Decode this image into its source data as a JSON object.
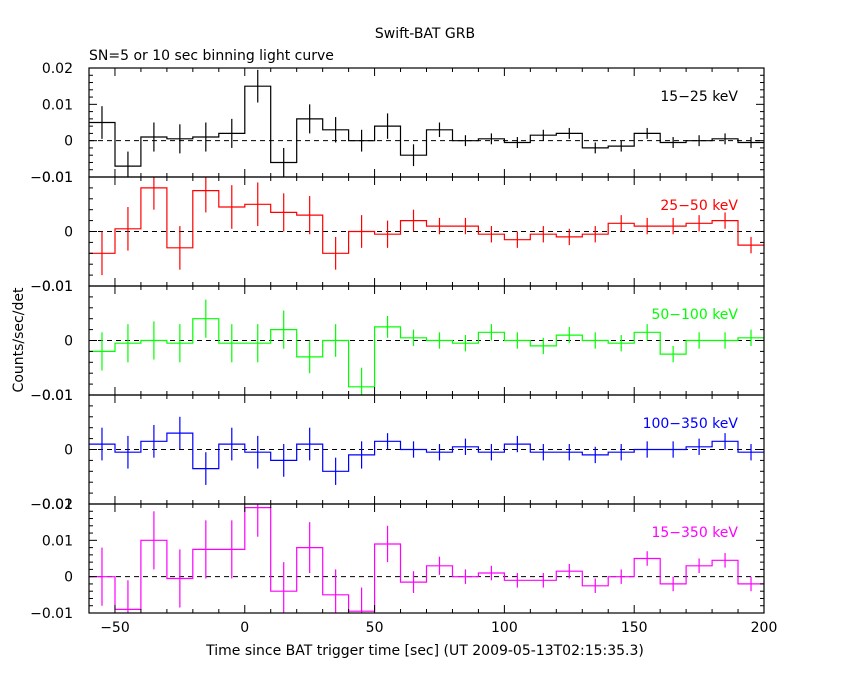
{
  "title": "Swift-BAT GRB",
  "subtitle": "SN=5 or 10 sec binning light curve",
  "xlabel": "Time since BAT trigger time [sec] (UT 2009-05-13T02:15:35.3)",
  "ylabel": "Counts/sec/det",
  "chart_data": {
    "type": "line",
    "title": "Swift-BAT GRB",
    "subtitle": "SN=5 or 10 sec binning light curve",
    "xlabel": "Time since BAT trigger time [sec] (UT 2009-05-13T02:15:35.3)",
    "ylabel": "Counts/sec/det",
    "xlim": [
      -60,
      200
    ],
    "x_ticks": [
      -50,
      0,
      50,
      100,
      150,
      200
    ],
    "x_tick_labels": [
      "−50",
      "0",
      "50",
      "100",
      "150",
      "200"
    ],
    "grid": false,
    "bin_width": 10,
    "bin_centers": [
      -55,
      -45,
      -35,
      -25,
      -15,
      -5,
      5,
      15,
      25,
      35,
      45,
      55,
      65,
      75,
      85,
      95,
      105,
      115,
      125,
      135,
      145,
      155,
      165,
      175,
      185,
      195
    ],
    "zero_line": "dashed",
    "panels": [
      {
        "label": "15−25 keV",
        "color": "#000000",
        "ylim": [
          -0.01,
          0.02
        ],
        "y_ticks": [
          -0.01,
          0,
          0.01,
          0.02
        ],
        "y_tick_labels": [
          "−0.01",
          "0",
          "0.01",
          "0.02"
        ],
        "values": [
          0.005,
          -0.007,
          0.001,
          0.0005,
          0.001,
          0.002,
          0.015,
          -0.006,
          0.006,
          0.003,
          0.0,
          0.004,
          -0.004,
          0.003,
          0.0,
          0.0005,
          -0.0005,
          0.0015,
          0.002,
          -0.002,
          -0.0015,
          0.002,
          -0.0005,
          0.0,
          0.0005,
          -0.0005
        ],
        "errors": [
          0.0045,
          0.004,
          0.004,
          0.004,
          0.004,
          0.004,
          0.0045,
          0.004,
          0.004,
          0.0035,
          0.003,
          0.0035,
          0.003,
          0.002,
          0.0015,
          0.0015,
          0.0015,
          0.0015,
          0.0015,
          0.0015,
          0.0015,
          0.0015,
          0.0015,
          0.0015,
          0.0015,
          0.0015
        ]
      },
      {
        "label": "25−50 keV",
        "color": "#ff0000",
        "ylim": [
          -0.01,
          0.01
        ],
        "y_ticks": [
          -0.01,
          0,
          0.01
        ],
        "y_tick_labels": [
          "−0.01",
          "0",
          "0.01"
        ],
        "values": [
          -0.004,
          0.0005,
          0.008,
          -0.003,
          0.0075,
          0.0045,
          0.005,
          0.0035,
          0.003,
          -0.004,
          0.0,
          -0.0005,
          0.002,
          0.001,
          0.001,
          -0.0005,
          -0.0015,
          -0.0005,
          -0.001,
          -0.0005,
          0.0015,
          0.001,
          0.001,
          0.0015,
          0.002,
          -0.0025
        ],
        "errors": [
          0.004,
          0.004,
          0.004,
          0.004,
          0.004,
          0.004,
          0.004,
          0.0035,
          0.0035,
          0.003,
          0.003,
          0.0025,
          0.002,
          0.0015,
          0.0015,
          0.0015,
          0.0015,
          0.0015,
          0.0015,
          0.0015,
          0.0015,
          0.0015,
          0.0015,
          0.0015,
          0.0015,
          0.0015
        ]
      },
      {
        "label": "50−100 keV",
        "color": "#00ff00",
        "ylim": [
          -0.01,
          0.01
        ],
        "y_ticks": [
          -0.01,
          0,
          0.01
        ],
        "y_tick_labels": [
          "−0.01",
          "0",
          "0.01"
        ],
        "values": [
          -0.002,
          -0.0005,
          0.0,
          -0.0005,
          0.004,
          -0.0005,
          -0.0005,
          0.002,
          -0.003,
          0.0,
          -0.0085,
          0.0025,
          0.0005,
          0.0,
          -0.0005,
          0.0015,
          0.0,
          -0.001,
          0.001,
          0.0,
          -0.0005,
          0.0015,
          -0.0025,
          0.0,
          0.0,
          0.0005
        ],
        "errors": [
          0.0035,
          0.0035,
          0.0035,
          0.0035,
          0.0035,
          0.0035,
          0.0035,
          0.0035,
          0.003,
          0.003,
          0.0035,
          0.002,
          0.0015,
          0.0015,
          0.0015,
          0.0015,
          0.0015,
          0.0015,
          0.0015,
          0.0015,
          0.0015,
          0.0015,
          0.0015,
          0.0015,
          0.0015,
          0.0015
        ]
      },
      {
        "label": "100−350 keV",
        "color": "#0000ff",
        "ylim": [
          -0.01,
          0.01
        ],
        "y_ticks": [
          -0.01,
          0,
          0.01
        ],
        "y_tick_labels": [
          "−0.01",
          "0",
          "0.01"
        ],
        "values": [
          0.001,
          -0.0005,
          0.0015,
          0.003,
          -0.0035,
          0.001,
          -0.0005,
          -0.002,
          0.001,
          -0.004,
          -0.001,
          0.0015,
          0.0,
          -0.0005,
          0.0005,
          -0.0005,
          0.001,
          -0.0005,
          -0.0005,
          -0.001,
          -0.0005,
          0.0,
          0.0,
          0.0005,
          0.0015,
          -0.0005
        ],
        "errors": [
          0.003,
          0.003,
          0.003,
          0.003,
          0.003,
          0.003,
          0.003,
          0.003,
          0.003,
          0.0025,
          0.0025,
          0.0015,
          0.0015,
          0.0015,
          0.0015,
          0.0015,
          0.0015,
          0.0015,
          0.0015,
          0.0015,
          0.0015,
          0.0015,
          0.0015,
          0.0015,
          0.0015,
          0.0015
        ]
      },
      {
        "label": "15−350 keV",
        "color": "#ff00ff",
        "ylim": [
          -0.01,
          0.02
        ],
        "y_ticks": [
          -0.01,
          0,
          0.01,
          0.02
        ],
        "y_tick_labels": [
          "−0.01",
          "0",
          "0.01",
          "0.02"
        ],
        "values": [
          0.0,
          -0.009,
          0.01,
          -0.0005,
          0.0075,
          0.0075,
          0.019,
          -0.004,
          0.008,
          -0.005,
          -0.0095,
          0.009,
          -0.0015,
          0.003,
          0.0,
          0.001,
          -0.001,
          -0.001,
          0.0015,
          -0.0025,
          0.0,
          0.005,
          -0.002,
          0.003,
          0.0045,
          -0.002
        ],
        "errors": [
          0.008,
          0.008,
          0.008,
          0.008,
          0.008,
          0.008,
          0.008,
          0.008,
          0.007,
          0.007,
          0.0065,
          0.005,
          0.003,
          0.0025,
          0.002,
          0.002,
          0.002,
          0.002,
          0.002,
          0.002,
          0.002,
          0.002,
          0.002,
          0.002,
          0.002,
          0.002
        ]
      }
    ]
  }
}
